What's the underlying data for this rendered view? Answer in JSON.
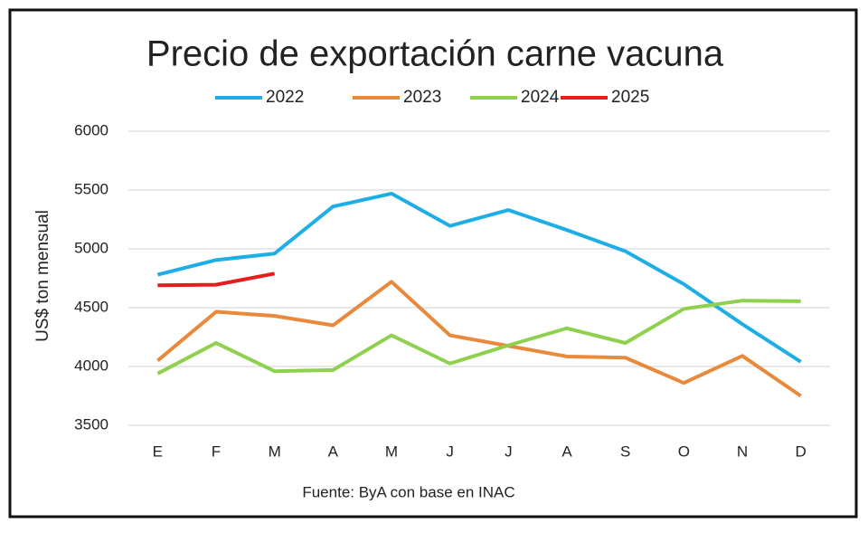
{
  "chart_data": {
    "type": "line",
    "title": "Precio de exportación carne vacuna",
    "y_label": "US$ ton mensual",
    "source": "Fuente: ByA con base en INAC",
    "categories": [
      "E",
      "F",
      "M",
      "A",
      "M",
      "J",
      "J",
      "A",
      "S",
      "O",
      "N",
      "D"
    ],
    "series": [
      {
        "name": "2022",
        "color": "#1eaee6",
        "values": [
          4780,
          4905,
          4960,
          5360,
          5470,
          5195,
          5330,
          5160,
          4980,
          4700,
          4360,
          4040
        ]
      },
      {
        "name": "2023",
        "color": "#e8893c",
        "values": [
          4050,
          4465,
          4430,
          4350,
          4720,
          4265,
          4175,
          4085,
          4075,
          3860,
          4090,
          3750
        ]
      },
      {
        "name": "2024",
        "color": "#8fd14f",
        "values": [
          3940,
          4200,
          3960,
          3970,
          4265,
          4025,
          4180,
          4325,
          4200,
          4490,
          4560,
          4555
        ]
      },
      {
        "name": "2025",
        "color": "#e81c1c",
        "values": [
          4690,
          4695,
          4790,
          null,
          null,
          null,
          null,
          null,
          null,
          null,
          null,
          null
        ]
      }
    ],
    "ylim": [
      3500,
      6000
    ],
    "yticks": [
      3500,
      4000,
      4500,
      5000,
      5500,
      6000
    ],
    "grid": true,
    "legend": "top"
  }
}
